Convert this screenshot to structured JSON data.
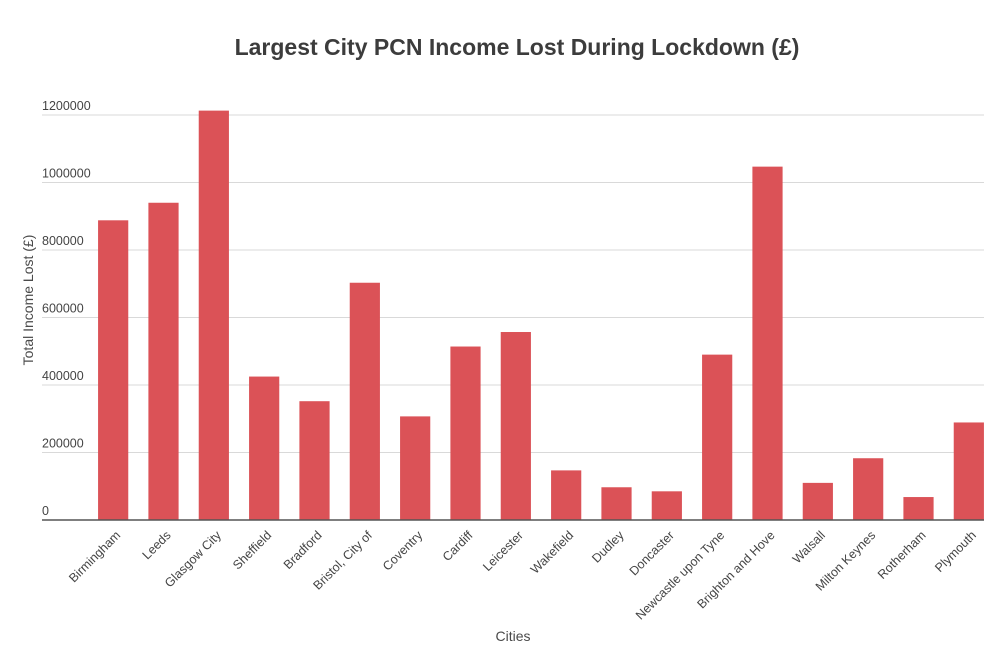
{
  "chart_data": {
    "type": "bar",
    "title": "Largest City PCN Income Lost During Lockdown (£)",
    "xlabel": "Cities",
    "ylabel": "Total Income Lost (£)",
    "categories": [
      "Birmingham",
      "Leeds",
      "Glasgow City",
      "Sheffield",
      "Bradford",
      "Bristol, City of",
      "Coventry",
      "Cardiff",
      "Leicester",
      "Wakefield",
      "Dudley",
      "Doncaster",
      "Newcastle upon Tyne",
      "Brighton and Hove",
      "Walsall",
      "Milton Keynes",
      "Rotherham",
      "Plymouth"
    ],
    "values": [
      888000,
      940000,
      1213000,
      425000,
      352000,
      703000,
      307000,
      514000,
      557000,
      147000,
      97000,
      85000,
      490000,
      1047000,
      110000,
      183000,
      68000,
      289000
    ],
    "ylim": [
      0,
      1200000
    ],
    "yticks": [
      "0",
      "200000",
      "400000",
      "600000",
      "800000",
      "1000000",
      "1200000"
    ],
    "ytick_values": [
      0,
      200000,
      400000,
      600000,
      800000,
      1000000,
      1200000
    ],
    "bar_color": "#db5257",
    "grid": true,
    "legend": "none"
  }
}
